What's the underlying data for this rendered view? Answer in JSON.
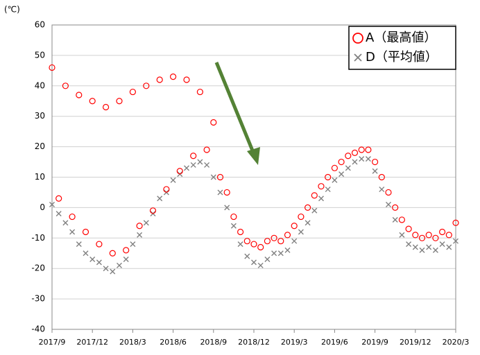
{
  "chart_data": {
    "type": "scatter",
    "y_label": "(℃)",
    "x": [
      0,
      0.5,
      1,
      1.5,
      2,
      2.5,
      3,
      3.5,
      4,
      4.5,
      5,
      5.5,
      6,
      6.5,
      7,
      7.5,
      8,
      8.5,
      9,
      9.5,
      10,
      10.5,
      11,
      11.5,
      12,
      12.5,
      13,
      13.5,
      14,
      14.5,
      15,
      15.5,
      16,
      16.5,
      17,
      17.5,
      18,
      18.5,
      19,
      19.5,
      20,
      20.5,
      21,
      21.5,
      22,
      22.5,
      23,
      23.5,
      24,
      24.5,
      25,
      25.5,
      26,
      26.5,
      27,
      27.5,
      28,
      28.5,
      29,
      29.5,
      30
    ],
    "series": [
      {
        "name": "A（最高値）",
        "color": "#ff0000",
        "marker": "circle",
        "values": [
          46,
          3,
          40,
          -3,
          37,
          -8,
          35,
          -12,
          33,
          -15,
          35,
          -14,
          38,
          -6,
          40,
          -1,
          42,
          6,
          43,
          12,
          42,
          17,
          38,
          19,
          28,
          10,
          5,
          -3,
          -8,
          -11,
          -12,
          -13,
          -11,
          -10,
          -11,
          -9,
          -6,
          -3,
          0,
          4,
          7,
          10,
          13,
          15,
          17,
          18,
          19,
          19,
          15,
          10,
          5,
          0,
          -4,
          -7,
          -9,
          -10,
          -9,
          -10,
          -8,
          -9,
          -5
        ]
      },
      {
        "name": "D（平均値）",
        "color": "#808080",
        "marker": "cross",
        "values": [
          1,
          -2,
          -5,
          -8,
          -12,
          -15,
          -17,
          -18,
          -20,
          -21,
          -19,
          -17,
          -12,
          -9,
          -5,
          -2,
          3,
          5,
          9,
          11,
          13,
          14,
          15,
          14,
          10,
          5,
          0,
          -6,
          -12,
          -16,
          -18,
          -19,
          -17,
          -15,
          -15,
          -14,
          -11,
          -8,
          -5,
          -1,
          3,
          6,
          9,
          11,
          13,
          15,
          16,
          16,
          12,
          6,
          1,
          -4,
          -9,
          -12,
          -13,
          -14,
          -13,
          -14,
          -12,
          -13,
          -11
        ]
      }
    ],
    "xlim": [
      0,
      30
    ],
    "xticks": [
      {
        "value": 0,
        "label": "2017/9"
      },
      {
        "value": 3,
        "label": "2017/12"
      },
      {
        "value": 6,
        "label": "2018/3"
      },
      {
        "value": 9,
        "label": "2018/6"
      },
      {
        "value": 12,
        "label": "2018/9"
      },
      {
        "value": 15,
        "label": "2018/12"
      },
      {
        "value": 18,
        "label": "2019/3"
      },
      {
        "value": 21,
        "label": "2019/6"
      },
      {
        "value": 24,
        "label": "2019/9"
      },
      {
        "value": 27,
        "label": "2019/12"
      },
      {
        "value": 30,
        "label": "2020/3"
      }
    ],
    "ylim": [
      -40,
      60
    ],
    "yticks": [
      -40,
      -30,
      -20,
      -10,
      0,
      10,
      20,
      30,
      40,
      50,
      60
    ],
    "grid": true,
    "legend": "upper right"
  }
}
